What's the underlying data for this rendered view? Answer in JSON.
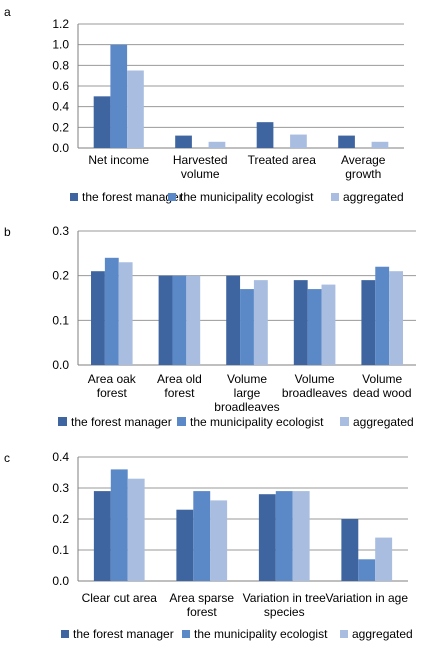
{
  "colors": {
    "series": [
      "#3f65a0",
      "#5b89c8",
      "#a8bddf"
    ],
    "grid": "#9a9a9a",
    "axis": "#7f7f7f"
  },
  "chart_data": [
    {
      "type": "bar",
      "panel_label": "a",
      "categories": [
        [
          "Net income"
        ],
        [
          "Harvested",
          "volume"
        ],
        [
          "Treated area"
        ],
        [
          "Average",
          "growth"
        ]
      ],
      "series": [
        {
          "name": "the forest manager",
          "values": [
            0.5,
            0.12,
            0.25,
            0.12
          ]
        },
        {
          "name": "the municipality ecologist",
          "values": [
            1.0,
            0.0,
            0.0,
            0.0
          ]
        },
        {
          "name": "aggregated",
          "values": [
            0.75,
            0.06,
            0.13,
            0.06
          ]
        }
      ],
      "ylim": [
        0,
        1.2
      ],
      "yticks": [
        "0.0",
        "0.2",
        "0.4",
        "0.6",
        "0.8",
        "1.0",
        "1.2"
      ],
      "grid": true,
      "legend": "bottom"
    },
    {
      "type": "bar",
      "panel_label": "b",
      "categories": [
        [
          "Area oak",
          "forest"
        ],
        [
          "Area old",
          "forest"
        ],
        [
          "Volume",
          "large",
          "broadleaves"
        ],
        [
          "Volume",
          "broadleaves"
        ],
        [
          "Volume",
          "dead wood"
        ]
      ],
      "series": [
        {
          "name": "the forest manager",
          "values": [
            0.21,
            0.2,
            0.2,
            0.19,
            0.19
          ]
        },
        {
          "name": "the municipality ecologist",
          "values": [
            0.24,
            0.2,
            0.17,
            0.17,
            0.22
          ]
        },
        {
          "name": "aggregated",
          "values": [
            0.23,
            0.2,
            0.19,
            0.18,
            0.21
          ]
        }
      ],
      "ylim": [
        0,
        0.3
      ],
      "yticks": [
        "0.0",
        "0.1",
        "0.2",
        "0.3"
      ],
      "grid": true,
      "legend": "bottom"
    },
    {
      "type": "bar",
      "panel_label": "c",
      "categories": [
        [
          "Clear cut area"
        ],
        [
          "Area sparse",
          "forest"
        ],
        [
          "Variation in tree",
          "species"
        ],
        [
          "Variation in age"
        ]
      ],
      "series": [
        {
          "name": "the forest manager",
          "values": [
            0.29,
            0.23,
            0.28,
            0.2
          ]
        },
        {
          "name": "the municipality ecologist",
          "values": [
            0.36,
            0.29,
            0.29,
            0.07
          ]
        },
        {
          "name": "aggregated",
          "values": [
            0.33,
            0.26,
            0.29,
            0.14
          ]
        }
      ],
      "ylim": [
        0,
        0.4
      ],
      "yticks": [
        "0.0",
        "0.1",
        "0.2",
        "0.3",
        "0.4"
      ],
      "grid": true,
      "legend": "bottom"
    }
  ]
}
